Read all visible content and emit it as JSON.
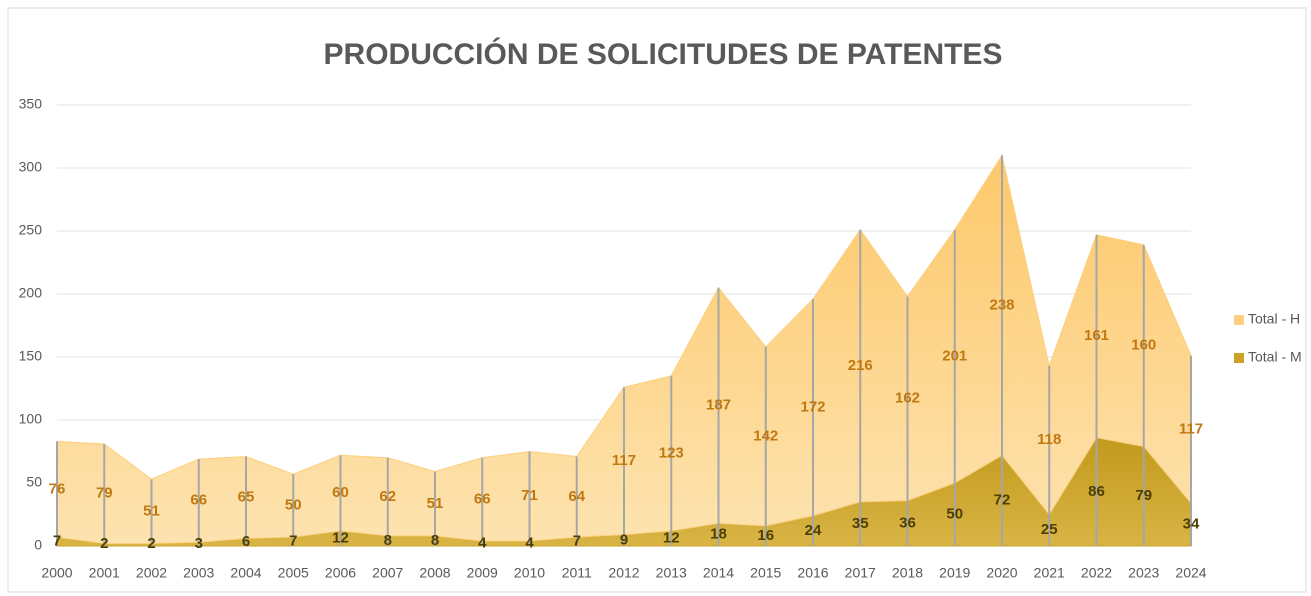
{
  "chart_data": {
    "type": "stacked_area",
    "title": "PRODUCCIÓN DE SOLICITUDES DE PATENTES",
    "categories": [
      "2000",
      "2001",
      "2002",
      "2003",
      "2004",
      "2005",
      "2006",
      "2007",
      "2008",
      "2009",
      "2010",
      "2011",
      "2012",
      "2013",
      "2014",
      "2015",
      "2016",
      "2017",
      "2018",
      "2019",
      "2020",
      "2021",
      "2022",
      "2023",
      "2024"
    ],
    "series": [
      {
        "name": "Total - M",
        "color": "#c9a227",
        "label_color": "#4d3f00",
        "values": [
          7,
          2,
          2,
          3,
          6,
          7,
          12,
          8,
          8,
          4,
          4,
          7,
          9,
          12,
          18,
          16,
          24,
          35,
          36,
          50,
          72,
          25,
          86,
          79,
          34
        ]
      },
      {
        "name": "Total - H",
        "color": "#fdcf7e",
        "label_color": "#c07810",
        "values": [
          76,
          79,
          51,
          66,
          65,
          50,
          60,
          62,
          51,
          66,
          71,
          64,
          117,
          123,
          187,
          142,
          172,
          216,
          162,
          201,
          238,
          118,
          161,
          160,
          117
        ]
      }
    ],
    "ylim": [
      0,
      350
    ],
    "yticks": [
      0,
      50,
      100,
      150,
      200,
      250,
      300,
      350
    ],
    "grid": true,
    "legend": "right"
  }
}
